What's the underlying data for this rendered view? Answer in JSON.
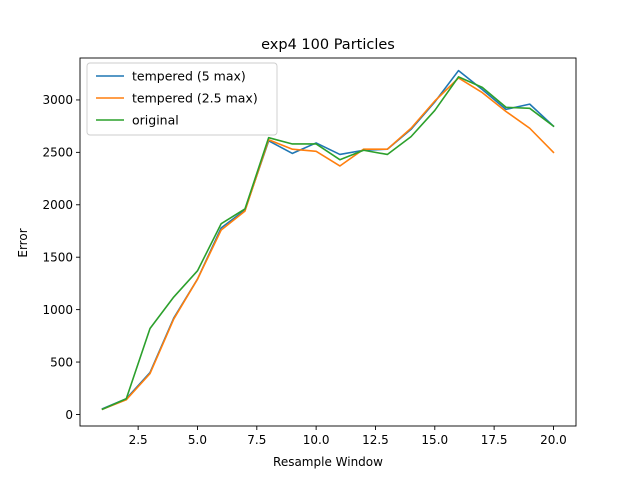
{
  "chart_data": {
    "type": "line",
    "title": "exp4 100 Particles",
    "xlabel": "Resample Window",
    "ylabel": "Error",
    "xlim": [
      0.05,
      20.95
    ],
    "ylim": [
      -110,
      3400
    ],
    "xticks": [
      2.5,
      5.0,
      7.5,
      10.0,
      12.5,
      15.0,
      17.5,
      20.0
    ],
    "xtick_labels": [
      "2.5",
      "5.0",
      "7.5",
      "10.0",
      "12.5",
      "15.0",
      "17.5",
      "20.0"
    ],
    "yticks": [
      0,
      500,
      1000,
      1500,
      2000,
      2500,
      3000
    ],
    "ytick_labels": [
      "0",
      "500",
      "1000",
      "1500",
      "2000",
      "2500",
      "3000"
    ],
    "grid": false,
    "legend_position": "top-left",
    "x": [
      1,
      2,
      3,
      4,
      5,
      6,
      7,
      8,
      9,
      10,
      11,
      12,
      13,
      14,
      15,
      16,
      17,
      18,
      19,
      20
    ],
    "series": [
      {
        "name": "tempered (5 max)",
        "color": "#1f77b4",
        "values": [
          55,
          150,
          400,
          920,
          1290,
          1780,
          1950,
          2610,
          2490,
          2590,
          2480,
          2520,
          2530,
          2720,
          2980,
          3280,
          3100,
          2910,
          2960,
          2750
        ]
      },
      {
        "name": "tempered (2.5 max)",
        "color": "#ff7f0e",
        "values": [
          50,
          140,
          390,
          910,
          1290,
          1760,
          1940,
          2620,
          2530,
          2510,
          2370,
          2530,
          2530,
          2730,
          2990,
          3210,
          3070,
          2890,
          2730,
          2500
        ]
      },
      {
        "name": "original",
        "color": "#2ca02c",
        "values": [
          50,
          150,
          820,
          1120,
          1370,
          1820,
          1960,
          2640,
          2580,
          2580,
          2430,
          2520,
          2480,
          2650,
          2900,
          3220,
          3120,
          2930,
          2920,
          2750
        ]
      }
    ]
  }
}
